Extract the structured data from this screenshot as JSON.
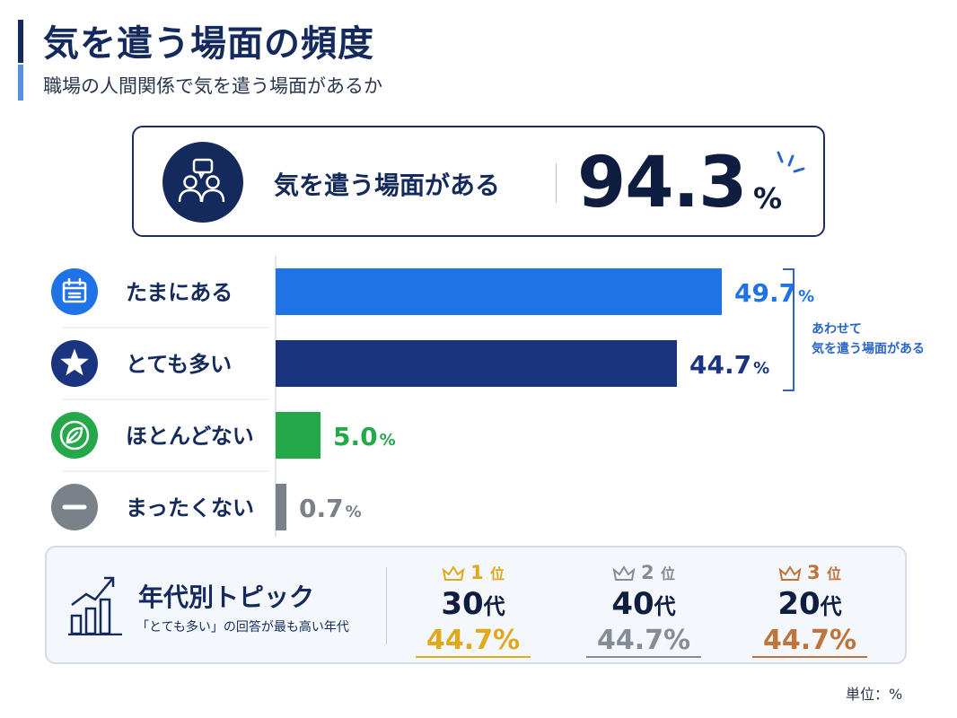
{
  "header": {
    "title": "気を遣う場面の頻度",
    "subtitle": "職場の人間関係で気を遣う場面があるか"
  },
  "hero": {
    "label": "気を遣う場面がある",
    "value": "94.3",
    "unit": "%",
    "icon": "people-chat-icon"
  },
  "chart_data": {
    "type": "bar",
    "orientation": "horizontal",
    "categories": [
      "たまにある",
      "とても多い",
      "ほとんどない",
      "まったくない"
    ],
    "values": [
      49.7,
      44.7,
      5.0,
      0.7
    ],
    "value_labels": [
      "49.7",
      "44.7",
      "5.0",
      "0.7"
    ],
    "unit": "%",
    "xlim": [
      0,
      55
    ],
    "colors": [
      "#1f73e6",
      "#1a347f",
      "#24a84a",
      "#7b8188"
    ],
    "icons": [
      "calendar-icon",
      "star-icon",
      "leaf-icon",
      "minus-icon"
    ],
    "bracket_label": [
      "あわせて",
      "気を遣う場面がある"
    ],
    "grid": false
  },
  "topic": {
    "title": "年代別トピック",
    "note": "「とても多い」の回答が最も高い年代",
    "icon": "growth-chart-icon",
    "ranks": [
      {
        "rank": "1",
        "suffix": "位",
        "age": "30",
        "age_suffix": "代",
        "value": "44.7%",
        "color": "#e0a91c"
      },
      {
        "rank": "2",
        "suffix": "位",
        "age": "40",
        "age_suffix": "代",
        "value": "44.7%",
        "color": "#858c95"
      },
      {
        "rank": "3",
        "suffix": "位",
        "age": "20",
        "age_suffix": "代",
        "value": "44.7%",
        "color": "#c0733a"
      }
    ]
  },
  "footer": {
    "unit_note": "単位：%"
  }
}
